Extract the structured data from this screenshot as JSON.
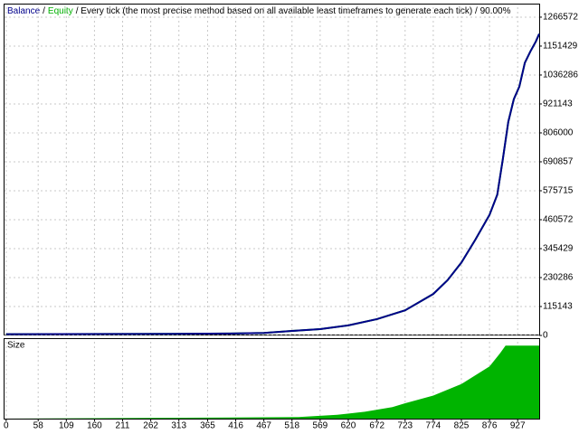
{
  "chart_data": {
    "type": "line",
    "header": {
      "separator": "/",
      "info": "/ Every tick (the most precise method based on all available least timeframes to generate each tick) / 90.00%"
    },
    "x": [
      0,
      100,
      200,
      300,
      400,
      467,
      518,
      569,
      620,
      672,
      723,
      774,
      800,
      825,
      850,
      876,
      890,
      900,
      910,
      920,
      930,
      940,
      950,
      960,
      966
    ],
    "series": [
      {
        "name": "Equity",
        "color": "#00b000",
        "values": [
          5000,
          5500,
          6000,
          6500,
          7500,
          10000,
          18000,
          25000,
          40000,
          65000,
          100000,
          165000,
          220000,
          290000,
          380000,
          480000,
          560000,
          700000,
          850000,
          940000,
          990000,
          1085000,
          1130000,
          1170000,
          1200000
        ]
      },
      {
        "name": "Balance",
        "color": "#00008b",
        "values": [
          5000,
          5500,
          6000,
          6500,
          7500,
          10000,
          18000,
          25000,
          40000,
          65000,
          100000,
          165000,
          220000,
          290000,
          380000,
          480000,
          560000,
          700000,
          850000,
          940000,
          990000,
          1085000,
          1130000,
          1170000,
          1200000
        ]
      }
    ],
    "xlim": [
      -3,
      966
    ],
    "xticks": [
      0,
      58,
      109,
      160,
      211,
      262,
      313,
      365,
      416,
      467,
      518,
      569,
      620,
      672,
      723,
      774,
      825,
      876,
      927
    ],
    "ylim": [
      0,
      1306000
    ],
    "yticks": [
      0,
      115143,
      230286,
      345429,
      460572,
      575715,
      690857,
      806000,
      921143,
      1036286,
      1151429,
      1266572
    ],
    "grid": true,
    "size_panel": {
      "label": "Size",
      "color": "#00b400",
      "ylim": [
        0,
        100
      ],
      "x": [
        0,
        530,
        600,
        650,
        700,
        723,
        774,
        825,
        876,
        895,
        905,
        966
      ],
      "values": [
        0,
        2,
        5,
        9,
        15,
        20,
        30,
        45,
        68,
        85,
        95,
        95
      ]
    }
  }
}
